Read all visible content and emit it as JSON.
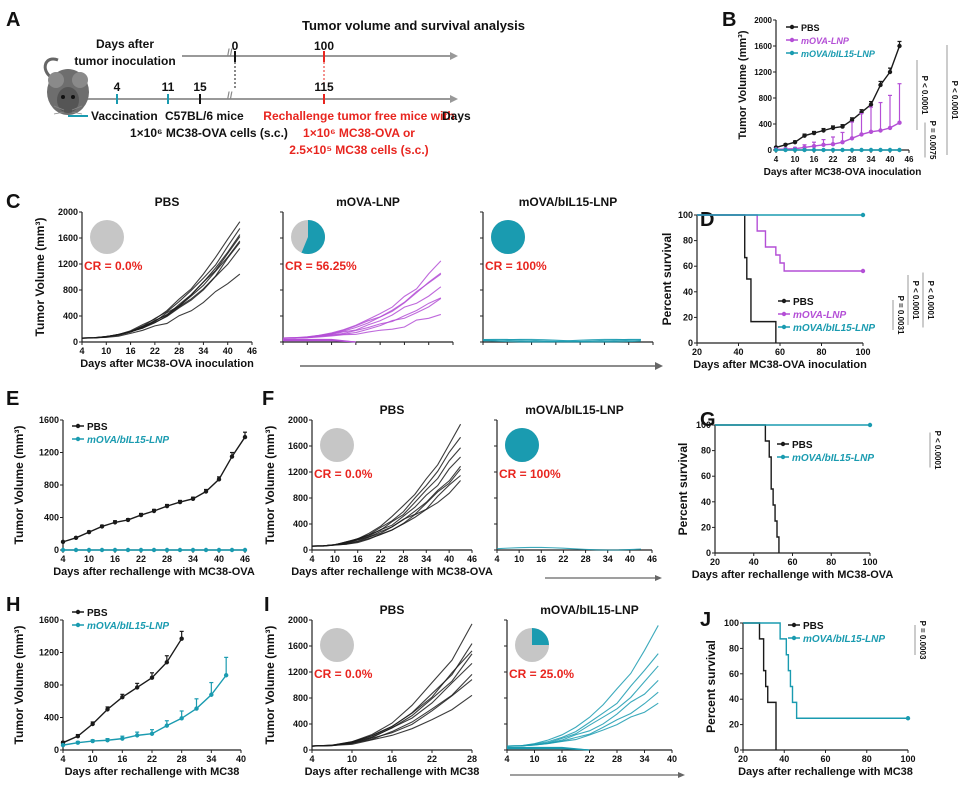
{
  "colors": {
    "pbs": "#1a1a1a",
    "ova": "#b44fd6",
    "il15": "#1a9bb0",
    "red": "#e8251f",
    "grey": "#c6c6c6",
    "axis": "#222222"
  },
  "panel_labels": [
    "A",
    "B",
    "C",
    "D",
    "E",
    "F",
    "G",
    "H",
    "I",
    "J"
  ],
  "schematic": {
    "title": "Tumor volume and survival analysis",
    "days_label": "Days after\ntumor inoculation",
    "top_ticks": [
      "0",
      "100"
    ],
    "bottom_ticks": [
      "0",
      "4",
      "11",
      "15",
      "115"
    ],
    "vaccination_label": "Vaccination",
    "mice_label": "C57BL/6 mice",
    "cells_label": "1×10⁶ MC38-OVA cells (s.c.)",
    "rechallenge": [
      "Rechallenge tumor free mice with",
      "1×10⁶ MC38-OVA or",
      "2.5×10⁵ MC38 cells (s.c.)"
    ],
    "axis_unit": "Days"
  },
  "chart_data": [
    {
      "panel": "B",
      "type": "line",
      "title": "",
      "xlabel": "Days after MC38-OVA inoculation",
      "ylabel": "Tumor Volume (mm³)",
      "xlim": [
        4,
        46
      ],
      "ylim": [
        0,
        2000
      ],
      "xticks": [
        4,
        10,
        16,
        22,
        28,
        34,
        40,
        46
      ],
      "yticks": [
        0,
        400,
        800,
        1200,
        1600,
        2000
      ],
      "legend": "top-left",
      "x": [
        4,
        7,
        10,
        13,
        16,
        19,
        22,
        25,
        28,
        31,
        34,
        37,
        40,
        43
      ],
      "series": [
        {
          "name": "PBS",
          "color_key": "pbs",
          "values": [
            40,
            80,
            120,
            220,
            260,
            300,
            340,
            360,
            460,
            580,
            700,
            1000,
            1200,
            1600
          ],
          "err": [
            10,
            15,
            20,
            25,
            25,
            30,
            30,
            30,
            35,
            40,
            45,
            55,
            60,
            70
          ]
        },
        {
          "name": "mOVA-LNP",
          "color_key": "ova",
          "values": [
            10,
            15,
            20,
            40,
            60,
            80,
            90,
            120,
            180,
            240,
            280,
            300,
            340,
            420
          ],
          "err": [
            10,
            15,
            20,
            40,
            60,
            80,
            110,
            150,
            250,
            320,
            380,
            430,
            500,
            600
          ]
        },
        {
          "name": "mOVA/bIL15-LNP",
          "color_key": "il15",
          "values": [
            0,
            0,
            0,
            0,
            0,
            0,
            0,
            0,
            0,
            0,
            0,
            0,
            0,
            0
          ],
          "err": [
            0,
            0,
            0,
            0,
            0,
            0,
            0,
            0,
            0,
            0,
            0,
            0,
            0,
            0
          ]
        }
      ],
      "annotations": [
        "P < 0.0001",
        "P = 0.0075",
        "P < 0.0001"
      ]
    },
    {
      "panel": "C",
      "type": "line",
      "subplots": [
        {
          "title": "PBS",
          "cr": "CR = 0.0%",
          "cr_fraction": 0.0,
          "color_key": "pbs",
          "n": 8,
          "final": [
            1850,
            1640,
            1600,
            1450,
            1080,
            1750,
            1550,
            1500
          ]
        },
        {
          "title": "mOVA-LNP",
          "cr": "CR = 56.25%",
          "cr_fraction": 0.5625,
          "color_key": "ova",
          "n": 16,
          "final": [
            1220,
            1080,
            880,
            700,
            420,
            650,
            1050
          ]
        },
        {
          "title": "mOVA/bIL15-LNP",
          "cr": "CR = 100%",
          "cr_fraction": 1.0,
          "color_key": "il15",
          "n": 8,
          "final": [
            0,
            0,
            0,
            0
          ]
        }
      ],
      "xlabel": "Days after MC38-OVA inoculation",
      "ylabel": "Tumor Volume (mm³)",
      "xlim": [
        4,
        46
      ],
      "ylim": [
        0,
        2000
      ],
      "xticks": [
        4,
        10,
        16,
        22,
        28,
        34,
        40,
        46
      ],
      "yticks": [
        0,
        400,
        800,
        1200,
        1600,
        2000
      ]
    },
    {
      "panel": "D",
      "type": "line",
      "kind": "survival",
      "xlabel": "Days after MC38-OVA inoculation",
      "ylabel": "Percent survival",
      "xlim": [
        20,
        100
      ],
      "ylim": [
        0,
        100
      ],
      "xticks": [
        20,
        40,
        60,
        80,
        100
      ],
      "yticks": [
        0,
        20,
        40,
        60,
        80,
        100
      ],
      "legend": "bottom-right",
      "series": [
        {
          "name": "PBS",
          "color_key": "pbs",
          "steps": [
            [
              20,
              100
            ],
            [
              43,
              100
            ],
            [
              43,
              66.7
            ],
            [
              44,
              66.7
            ],
            [
              44,
              50
            ],
            [
              46,
              50
            ],
            [
              46,
              16.7
            ],
            [
              58,
              16.7
            ],
            [
              58,
              0
            ]
          ]
        },
        {
          "name": "mOVA-LNP",
          "color_key": "ova",
          "steps": [
            [
              20,
              100
            ],
            [
              49,
              100
            ],
            [
              49,
              87.5
            ],
            [
              53,
              87.5
            ],
            [
              53,
              75
            ],
            [
              58,
              75
            ],
            [
              58,
              68.75
            ],
            [
              60,
              68.75
            ],
            [
              60,
              62.5
            ],
            [
              62,
              62.5
            ],
            [
              62,
              56.25
            ],
            [
              100,
              56.25
            ]
          ]
        },
        {
          "name": "mOVA/bIL15-LNP",
          "color_key": "il15",
          "steps": [
            [
              20,
              100
            ],
            [
              100,
              100
            ]
          ]
        }
      ],
      "annotations": [
        "P = 0.0031",
        "P < 0.0001",
        "P < 0.0001"
      ]
    },
    {
      "panel": "E",
      "type": "line",
      "xlabel": "Days after rechallenge with MC38-OVA",
      "ylabel": "Tumor Volume (mm³)",
      "xlim": [
        4,
        46
      ],
      "ylim": [
        0,
        1600
      ],
      "xticks": [
        4,
        10,
        16,
        22,
        28,
        34,
        40,
        46
      ],
      "yticks": [
        0,
        400,
        800,
        1200,
        1600
      ],
      "legend": "top-left",
      "x": [
        4,
        7,
        10,
        13,
        16,
        19,
        22,
        25,
        28,
        31,
        34,
        37,
        40,
        43,
        46
      ],
      "series": [
        {
          "name": "PBS",
          "color_key": "pbs",
          "values": [
            100,
            150,
            220,
            290,
            340,
            370,
            430,
            480,
            540,
            590,
            630,
            720,
            870,
            1150,
            1390
          ],
          "err": [
            10,
            10,
            15,
            15,
            20,
            15,
            20,
            20,
            20,
            20,
            20,
            25,
            30,
            50,
            60
          ]
        },
        {
          "name": "mOVA/bIL15-LNP",
          "color_key": "il15",
          "values": [
            0,
            0,
            0,
            0,
            0,
            0,
            0,
            0,
            0,
            0,
            0,
            0,
            0,
            0,
            0
          ],
          "err": [
            0,
            0,
            0,
            0,
            0,
            0,
            0,
            0,
            0,
            0,
            0,
            0,
            0,
            0,
            0
          ]
        }
      ]
    },
    {
      "panel": "F",
      "type": "line",
      "subplots": [
        {
          "title": "PBS",
          "cr": "CR = 0.0%",
          "cr_fraction": 0.0,
          "color_key": "pbs",
          "n": 8,
          "final": [
            1900,
            1750,
            1600,
            1450,
            1300,
            1250,
            1150,
            1050
          ]
        },
        {
          "title": "mOVA/bIL15-LNP",
          "cr": "CR = 100%",
          "cr_fraction": 1.0,
          "color_key": "il15",
          "n": 8,
          "final": [
            0
          ]
        }
      ],
      "xlabel": "Days after rechallenge with MC38-OVA",
      "ylabel": "Tumor Volume (mm³)",
      "xlim": [
        4,
        46
      ],
      "ylim": [
        0,
        2000
      ],
      "xticks": [
        4,
        10,
        16,
        22,
        28,
        34,
        40,
        46
      ],
      "yticks": [
        0,
        400,
        800,
        1200,
        1600,
        2000
      ]
    },
    {
      "panel": "G",
      "type": "line",
      "kind": "survival",
      "xlabel": "Days after rechallenge with MC38-OVA",
      "ylabel": "Percent survival",
      "xlim": [
        20,
        100
      ],
      "ylim": [
        0,
        100
      ],
      "xticks": [
        20,
        40,
        60,
        80,
        100
      ],
      "yticks": [
        0,
        20,
        40,
        60,
        80,
        100
      ],
      "legend": "top-right",
      "series": [
        {
          "name": "PBS",
          "color_key": "pbs",
          "steps": [
            [
              20,
              100
            ],
            [
              46,
              100
            ],
            [
              46,
              87.5
            ],
            [
              48,
              87.5
            ],
            [
              48,
              75
            ],
            [
              49,
              75
            ],
            [
              49,
              50
            ],
            [
              50,
              50
            ],
            [
              50,
              37.5
            ],
            [
              51,
              37.5
            ],
            [
              51,
              25
            ],
            [
              52,
              25
            ],
            [
              52,
              12.5
            ],
            [
              53,
              12.5
            ],
            [
              53,
              0
            ]
          ]
        },
        {
          "name": "mOVA/bIL15-LNP",
          "color_key": "il15",
          "steps": [
            [
              20,
              100
            ],
            [
              100,
              100
            ]
          ]
        }
      ],
      "annotations": [
        "P < 0.0001"
      ]
    },
    {
      "panel": "H",
      "type": "line",
      "xlabel": "Days after rechallenge with MC38",
      "ylabel": "Tumor Volume (mm³)",
      "xlim": [
        4,
        40
      ],
      "ylim": [
        0,
        1600
      ],
      "xticks": [
        4,
        10,
        16,
        22,
        28,
        34,
        40
      ],
      "yticks": [
        0,
        400,
        800,
        1200,
        1600
      ],
      "legend": "top-left",
      "series": [
        {
          "name": "PBS",
          "color_key": "pbs",
          "x": [
            4,
            7,
            10,
            13,
            16,
            19,
            22,
            25,
            28
          ],
          "values": [
            90,
            170,
            320,
            500,
            650,
            770,
            890,
            1080,
            1370
          ],
          "err": [
            15,
            20,
            25,
            30,
            35,
            50,
            60,
            80,
            90
          ]
        },
        {
          "name": "mOVA/bIL15-LNP",
          "color_key": "il15",
          "x": [
            4,
            7,
            10,
            13,
            16,
            19,
            22,
            25,
            28,
            31,
            34,
            37
          ],
          "values": [
            60,
            90,
            110,
            120,
            140,
            180,
            200,
            300,
            390,
            510,
            680,
            920
          ],
          "err": [
            10,
            15,
            15,
            20,
            30,
            40,
            50,
            60,
            90,
            120,
            150,
            220
          ]
        }
      ]
    },
    {
      "panel": "I",
      "type": "line",
      "subplots": [
        {
          "title": "PBS",
          "cr": "CR = 0.0%",
          "cr_fraction": 0.0,
          "color_key": "pbs",
          "n": 8,
          "xmax": 28,
          "xlim": [
            4,
            28
          ],
          "xticks": [
            4,
            10,
            16,
            22,
            28
          ],
          "final": [
            1900,
            1600,
            1550,
            1450,
            1350,
            1150,
            1100,
            850
          ]
        },
        {
          "title": "mOVA/bIL15-LNP",
          "cr": "CR = 25.0%",
          "cr_fraction": 0.25,
          "color_key": "il15",
          "n": 8,
          "xmax": 37,
          "xlim": [
            4,
            40
          ],
          "xticks": [
            4,
            10,
            16,
            22,
            28,
            34,
            40
          ],
          "final": [
            1880,
            1480,
            1300,
            1090,
            870,
            720
          ]
        }
      ],
      "xlabel": "Days after rechallenge with MC38",
      "ylabel": "Tumor Volume (mm³)",
      "ylim": [
        0,
        2000
      ],
      "yticks": [
        0,
        400,
        800,
        1200,
        1600,
        2000
      ]
    },
    {
      "panel": "J",
      "type": "line",
      "kind": "survival",
      "xlabel": "Days after rechallenge with MC38",
      "ylabel": "Percent survival",
      "xlim": [
        20,
        100
      ],
      "ylim": [
        0,
        100
      ],
      "xticks": [
        20,
        40,
        60,
        80,
        100
      ],
      "yticks": [
        0,
        20,
        40,
        60,
        80,
        100
      ],
      "legend": "top-right",
      "series": [
        {
          "name": "PBS",
          "color_key": "pbs",
          "steps": [
            [
              20,
              100
            ],
            [
              28,
              100
            ],
            [
              28,
              87.5
            ],
            [
              30,
              87.5
            ],
            [
              30,
              62.5
            ],
            [
              31,
              62.5
            ],
            [
              31,
              50
            ],
            [
              32,
              50
            ],
            [
              32,
              37.5
            ],
            [
              36,
              37.5
            ],
            [
              36,
              0
            ]
          ]
        },
        {
          "name": "mOVA/bIL15-LNP",
          "color_key": "il15",
          "steps": [
            [
              20,
              100
            ],
            [
              38,
              100
            ],
            [
              38,
              87.5
            ],
            [
              41,
              87.5
            ],
            [
              41,
              75
            ],
            [
              42,
              75
            ],
            [
              42,
              62.5
            ],
            [
              43,
              62.5
            ],
            [
              43,
              50
            ],
            [
              44,
              50
            ],
            [
              44,
              37.5
            ],
            [
              46,
              37.5
            ],
            [
              46,
              25
            ],
            [
              100,
              25
            ]
          ]
        }
      ],
      "annotations": [
        "P = 0.0003"
      ]
    }
  ]
}
